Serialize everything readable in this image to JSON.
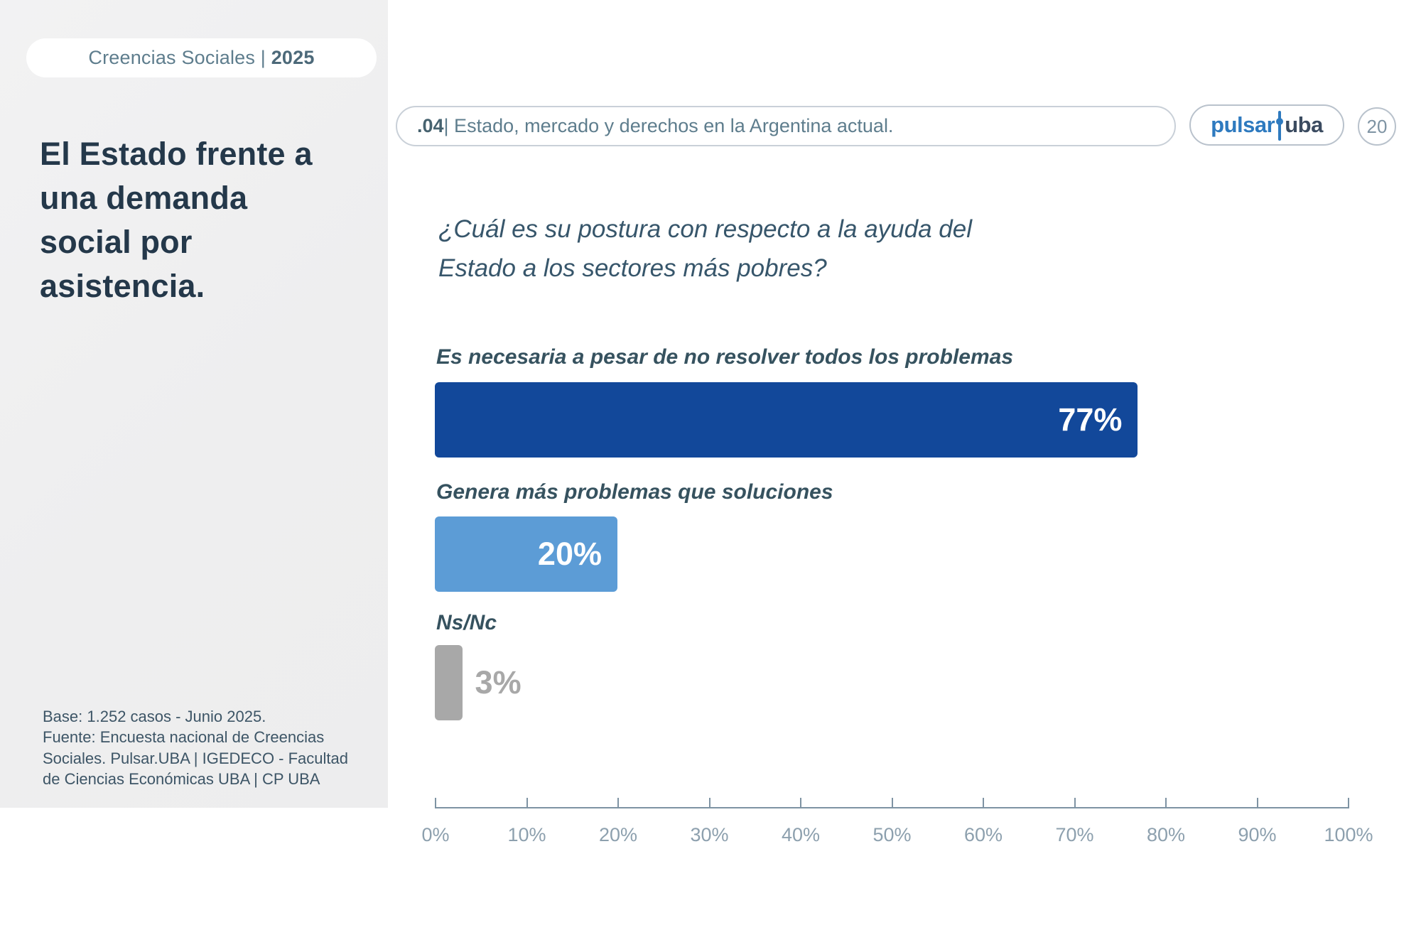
{
  "sidebar": {
    "badge": {
      "prefix": "Creencias Sociales | ",
      "year": "2025"
    },
    "title_lines": [
      "El Estado frente a",
      "una demanda",
      "social por",
      "asistencia."
    ],
    "source_lines": [
      "Base: 1.252 casos - Junio 2025.",
      "Fuente: Encuesta nacional de Creencias",
      "Sociales. Pulsar.UBA | IGEDECO - Facultad",
      "de Ciencias Económicas UBA | CP UBA"
    ]
  },
  "header": {
    "section_number": ".04",
    "section_title": "| Estado, mercado y derechos en la Argentina actual.",
    "logo": {
      "pulsar": "pulsar",
      "uba": "uba",
      "pin_icon": "pulse-pin-icon",
      "pin_color": "#2e7abf"
    },
    "page_number": "20"
  },
  "chart_data": {
    "type": "bar",
    "orientation": "horizontal",
    "title": "¿Cuál es su postura con respecto a la ayuda del Estado a los sectores más pobres?",
    "categories": [
      "Es necesaria a pesar de no resolver todos los problemas",
      "Genera más problemas que soluciones",
      "Ns/Nc"
    ],
    "values": [
      77,
      20,
      3
    ],
    "value_labels": [
      "77%",
      "20%",
      "3%"
    ],
    "colors": [
      "#12489a",
      "#5c9cd6",
      "#a8a8a8"
    ],
    "xlim": [
      0,
      100
    ],
    "x_tick_labels": [
      "0%",
      "10%",
      "20%",
      "30%",
      "40%",
      "50%",
      "60%",
      "70%",
      "80%",
      "90%",
      "100%"
    ],
    "grid": false,
    "legend": false
  }
}
